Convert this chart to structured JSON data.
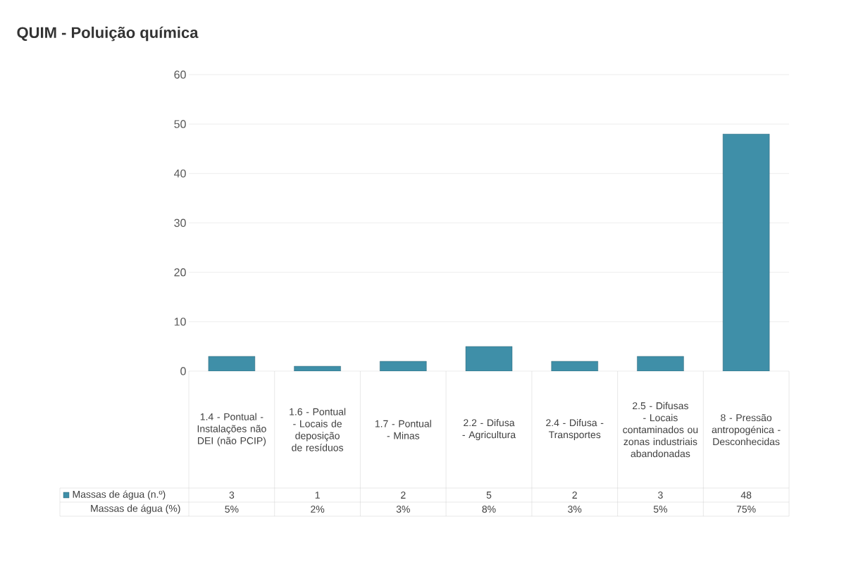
{
  "chart_data": {
    "type": "bar",
    "title": "QUIM - Poluição química",
    "categories": [
      "1.4 - Pontual - Instalações não DEI (não PCIP)",
      "1.6 - Pontual - Locais de deposição de resíduos",
      "1.7 - Pontual - Minas",
      "2.2 - Difusa - Agricultura",
      "2.4 - Difusa - Transportes",
      "2.5 - Difusas - Locais contaminados ou zonas industriais abandonadas",
      "8 - Pressão antropogénica - Desconhecidas"
    ],
    "series": [
      {
        "name": "Massas de água (n.º)",
        "color": "#3f8fa8",
        "values": [
          3,
          1,
          2,
          5,
          2,
          3,
          48
        ]
      }
    ],
    "ylim": [
      0,
      60
    ],
    "yticks": [
      0,
      10,
      20,
      30,
      40,
      50,
      60
    ],
    "grid": "y",
    "data_labels": true,
    "legend": "bottom",
    "annotations": [
      "Massas de água (%)",
      "5%",
      "2%",
      "3%",
      "8%",
      "3%",
      "5%",
      "75%"
    ]
  }
}
